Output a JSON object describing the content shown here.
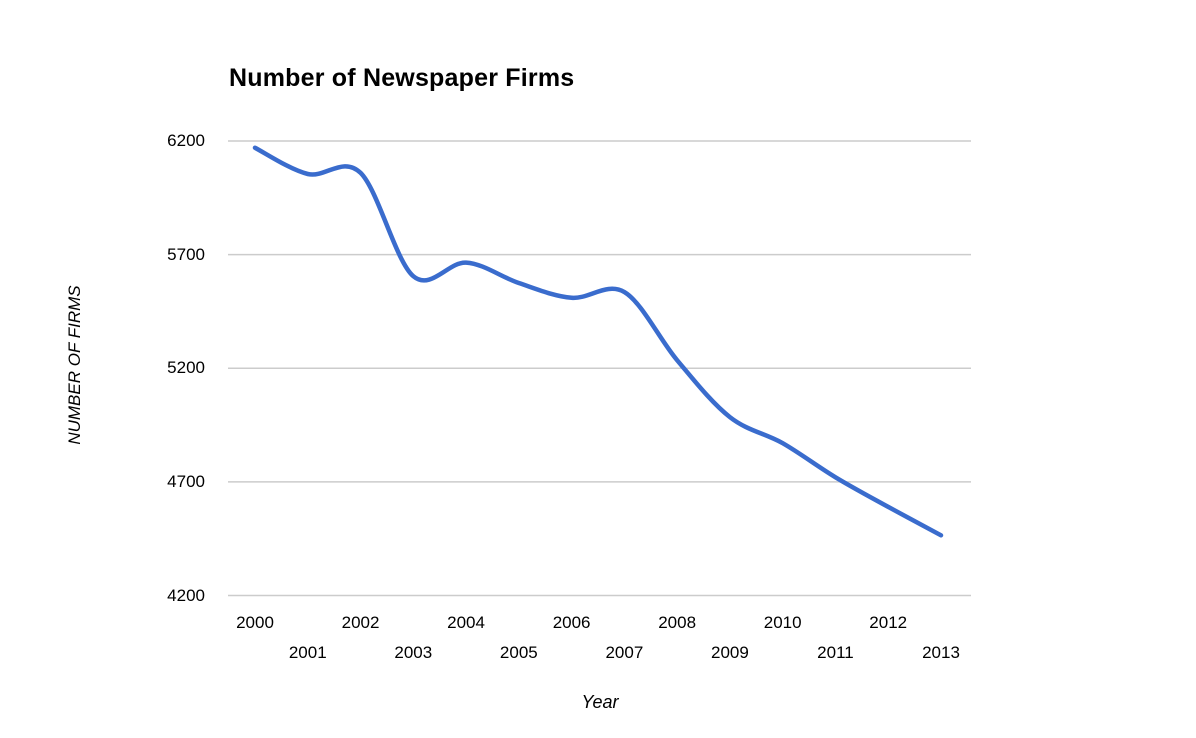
{
  "chart_data": {
    "type": "line",
    "title": "Number of Newspaper Firms",
    "xlabel": "Year",
    "ylabel": "NUMBER OF FIRMS",
    "categories": [
      "2000",
      "2001",
      "2002",
      "2003",
      "2004",
      "2005",
      "2006",
      "2007",
      "2008",
      "2009",
      "2010",
      "2011",
      "2012",
      "2013"
    ],
    "series": [
      {
        "name": "Number of Newspaper Firms",
        "values": [
          6170,
          6055,
          6060,
          5605,
          5665,
          5575,
          5510,
          5535,
          5235,
          4985,
          4870,
          4720,
          4590,
          4465
        ]
      }
    ],
    "yticks": [
      4200,
      4700,
      5200,
      5700,
      6200
    ],
    "ylim": [
      4200,
      6200
    ],
    "grid": true,
    "legend_position": "none",
    "smooth": true,
    "line_color": "#3a6ccd",
    "grid_color": "#cccccc",
    "text_color": "#000000",
    "background_color": "#ffffff"
  }
}
